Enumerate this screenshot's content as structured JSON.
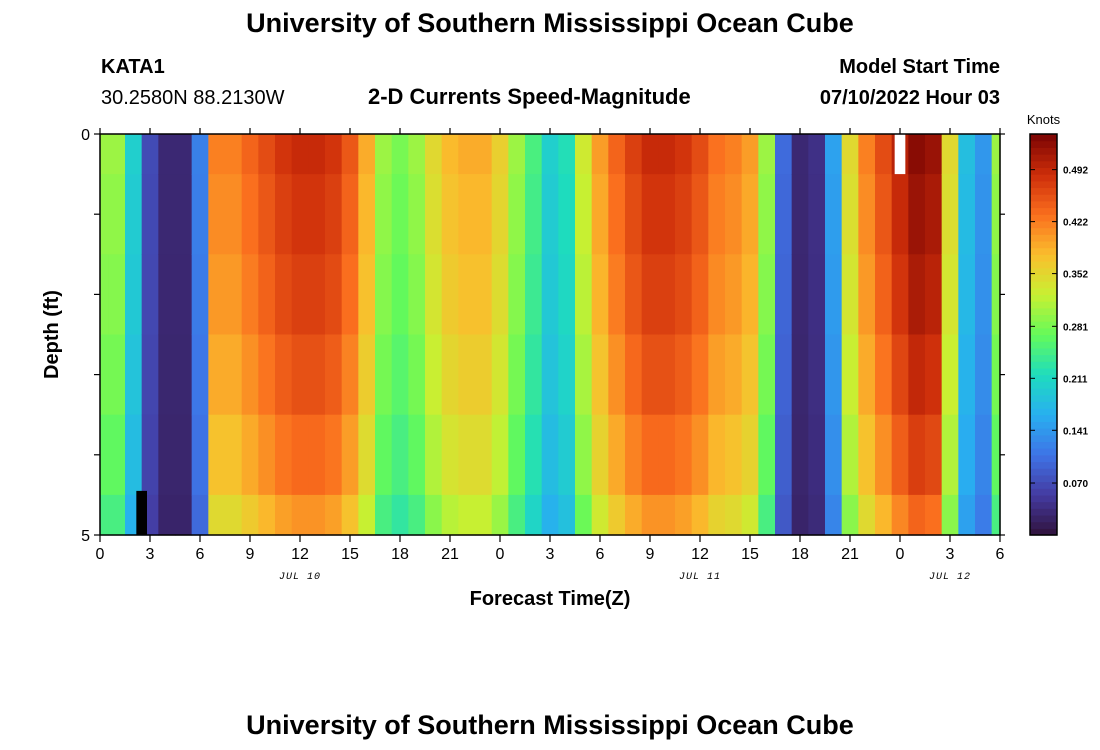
{
  "page": {
    "title_top": "University of Southern Mississippi Ocean Cube",
    "title_bottom": "University of Southern Mississippi Ocean Cube"
  },
  "header": {
    "station_id": "KATA1",
    "station_coords": "30.2580N  88.2130W",
    "subtitle": "2-D Currents Speed-Magnitude",
    "model_label": "Model Start Time",
    "model_time": "07/10/2022 Hour 03"
  },
  "chart_data": {
    "type": "heatmap",
    "title": "2-D Currents Speed-Magnitude",
    "xlabel": "Forecast Time(Z)",
    "ylabel": "Depth (ft)",
    "units_label": "Knots",
    "x_hours": [
      0,
      1,
      2,
      3,
      4,
      5,
      6,
      7,
      8,
      9,
      10,
      11,
      12,
      13,
      14,
      15,
      16,
      17,
      18,
      19,
      20,
      21,
      22,
      23,
      24,
      25,
      26,
      27,
      28,
      29,
      30,
      31,
      32,
      33,
      34,
      35,
      36,
      37,
      38,
      39,
      40,
      41,
      42,
      43,
      44,
      45,
      46,
      47,
      48,
      49,
      50,
      51,
      52,
      53,
      54
    ],
    "xlim": [
      0,
      54
    ],
    "x_ticks": [
      0,
      3,
      6,
      9,
      12,
      15,
      18,
      21,
      24,
      27,
      30,
      33,
      36,
      39,
      42,
      45,
      48,
      51,
      54
    ],
    "x_tick_labels": [
      "0",
      "3",
      "6",
      "9",
      "12",
      "15",
      "18",
      "21",
      "0",
      "3",
      "6",
      "9",
      "12",
      "15",
      "18",
      "21",
      "0",
      "3",
      "6"
    ],
    "date_labels": [
      {
        "text": "JUL 10",
        "hour": 12
      },
      {
        "text": "JUL 11",
        "hour": 36
      },
      {
        "text": "JUL 12",
        "hour": 51
      }
    ],
    "depth_levels_ft": [
      0,
      1,
      2,
      3,
      4,
      5
    ],
    "ylim": [
      0,
      5
    ],
    "y_tick_labels": [
      "0",
      "5"
    ],
    "colorbar": {
      "min": 0.0,
      "max": 0.54,
      "tick_values": [
        0.07,
        0.141,
        0.211,
        0.281,
        0.352,
        0.422,
        0.492
      ],
      "tick_labels": [
        "0.070",
        "0.141",
        "0.211",
        "0.281",
        "0.352",
        "0.422",
        "0.492"
      ]
    },
    "surface_speed_knots": [
      0.3,
      0.3,
      0.2,
      0.07,
      0.03,
      0.03,
      0.12,
      0.42,
      0.42,
      0.44,
      0.46,
      0.48,
      0.49,
      0.49,
      0.48,
      0.45,
      0.39,
      0.3,
      0.28,
      0.3,
      0.35,
      0.38,
      0.39,
      0.39,
      0.36,
      0.3,
      0.25,
      0.2,
      0.22,
      0.33,
      0.4,
      0.44,
      0.47,
      0.49,
      0.49,
      0.48,
      0.46,
      0.43,
      0.42,
      0.4,
      0.3,
      0.1,
      0.03,
      0.04,
      0.15,
      0.35,
      0.42,
      0.46,
      0.5,
      0.53,
      0.52,
      0.35,
      0.18,
      0.14,
      0.3
    ],
    "depth_factors": [
      1.0,
      0.98,
      0.96,
      0.93,
      0.89,
      0.83
    ],
    "missing_cells": [
      {
        "hour": 2.5,
        "depth_from": 4.45,
        "depth_to": 5.0,
        "color": "#000000"
      },
      {
        "hour": 48.0,
        "depth_from": 0.0,
        "depth_to": 0.5,
        "color": "#ffffff"
      }
    ]
  }
}
